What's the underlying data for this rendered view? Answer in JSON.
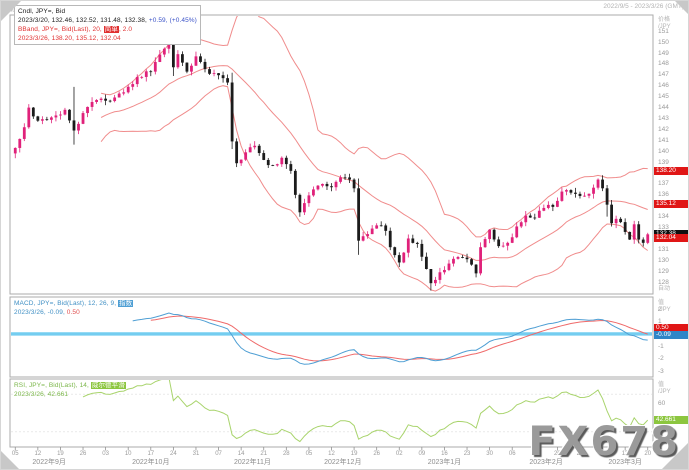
{
  "header": {
    "left": "现汇, JPY=",
    "right": "2022/9/5 - 2023/3/26 (GMT)"
  },
  "watermark": "FX678",
  "auto_label": "自动",
  "panels": {
    "price": {
      "legend": [
        [
          {
            "t": "Cndl, JPY=, Bid",
            "c": "#1a1a1a"
          }
        ],
        [
          {
            "t": "2023/3/20, 132.46, 132.52, 131.48, 132.38, ",
            "c": "#1a1a1a"
          },
          {
            "t": "+0.59, (+0.45%)",
            "c": "#3a52c8"
          }
        ],
        [
          {
            "t": "BBand, JPY=, Bid(Last), 20, ",
            "c": "#e03030"
          },
          {
            "t": "简单",
            "c": "#ffffff",
            "bg": "#e03030"
          },
          {
            "t": ", 2.0",
            "c": "#e03030"
          }
        ],
        [
          {
            "t": "2023/3/26, 138.20, 135.12, 132.04",
            "c": "#e03030"
          }
        ]
      ],
      "axis": {
        "title": "价格",
        "unit": "/JPY",
        "badges": [
          {
            "value": 138.2,
            "label": "138.20",
            "bg": "#e01616"
          },
          {
            "value": 135.12,
            "label": "135.12",
            "bg": "#e01616"
          },
          {
            "value": 132.38,
            "label": "132.38",
            "bg": "#101010"
          },
          {
            "value": 132.04,
            "label": "132.04",
            "bg": "#e01616"
          }
        ]
      }
    },
    "macd": {
      "legend": [
        [
          {
            "t": "MACD, JPY=, Bid(Last), 12, 26, 9, ",
            "c": "#3f8fc4"
          },
          {
            "t": "指数",
            "c": "#ffffff",
            "bg": "#4f9fd4"
          }
        ],
        [
          {
            "t": "2023/3/26, -0.09, ",
            "c": "#3f8fc4"
          },
          {
            "t": "0.50",
            "c": "#e05050"
          }
        ]
      ],
      "axis": {
        "title": "值",
        "unit": "/JPY",
        "badges": [
          {
            "value": 0.5,
            "label": "0.50",
            "bg": "#e01616"
          },
          {
            "value": -0.09,
            "label": "-0.09",
            "bg": "#2f86c8"
          }
        ]
      }
    },
    "rsi": {
      "legend": [
        [
          {
            "t": "RSI, JPY=, Bid(Last), 14, ",
            "c": "#7ab648"
          },
          {
            "t": "威尔德平滑",
            "c": "#ffffff",
            "bg": "#8cc63f"
          }
        ],
        [
          {
            "t": "2023/3/26, 42.661",
            "c": "#7ab648"
          }
        ]
      ],
      "axis": {
        "title": "值",
        "unit": "/JPY",
        "badges": [
          {
            "value": 42.661,
            "label": "42.661",
            "bg": "#8cc63f"
          }
        ]
      }
    }
  },
  "time_axis": {
    "months": [
      {
        "label": "2022年9月",
        "monday_start": 0,
        "days": [
          "05",
          "12",
          "19",
          "26"
        ]
      },
      {
        "label": "2022年10月",
        "monday_start": 4,
        "days": [
          "03",
          "10",
          "17",
          "24",
          "31"
        ]
      },
      {
        "label": "2022年11月",
        "monday_start": 9,
        "days": [
          "07",
          "14",
          "21",
          "28"
        ]
      },
      {
        "label": "2022年12月",
        "monday_start": 13,
        "days": [
          "05",
          "12",
          "19",
          "26"
        ]
      },
      {
        "label": "2023年1月",
        "monday_start": 17,
        "days": [
          "02",
          "09",
          "16",
          "23",
          "30"
        ]
      },
      {
        "label": "2023年2月",
        "monday_start": 22,
        "days": [
          "06",
          "13",
          "20",
          "27"
        ]
      },
      {
        "label": "2023年3月",
        "monday_start": 26,
        "days": [
          "06",
          "13",
          "20"
        ]
      }
    ]
  },
  "chart_data": {
    "type": "candlestick",
    "instrument": "JPY=",
    "interval": "daily",
    "date_range": [
      "2022/9/5",
      "2023/3/26"
    ],
    "last_candle": {
      "date": "2023/3/20",
      "open": 132.46,
      "high": 132.52,
      "low": 131.48,
      "close": 132.38,
      "change": "+0.59",
      "change_pct": "+0.45%"
    },
    "overlays": {
      "bollinger": {
        "period": 20,
        "ma_type": "简单",
        "stdev": 2.0,
        "last": {
          "upper": 138.2,
          "mid": 135.12,
          "lower": 132.04
        }
      }
    },
    "price_axis": {
      "min": 127.0,
      "max": 152.4,
      "ticks": [
        151,
        150,
        149,
        148,
        147,
        146,
        145,
        144,
        143,
        142,
        141,
        140,
        139,
        138,
        137,
        136,
        135,
        134,
        133,
        132,
        131,
        130,
        129,
        128
      ]
    },
    "indicators": [
      {
        "name": "MACD",
        "params": [
          12,
          26,
          9
        ],
        "ma_type": "指数",
        "range": [
          2.9,
          -3.4
        ],
        "ticks": [
          2,
          1,
          -1,
          -2,
          -3
        ],
        "last": {
          "macd": -0.09,
          "signal": 0.5
        }
      },
      {
        "name": "RSI",
        "params": [
          14
        ],
        "smoothing": "威尔德平滑",
        "range": [
          85,
          15
        ],
        "ticks": [
          60,
          40
        ],
        "last": 42.661
      }
    ],
    "close_anchors": [
      [
        0,
        140.3
      ],
      [
        2,
        142.2
      ],
      [
        3,
        144.0
      ],
      [
        5,
        142.8
      ],
      [
        8,
        143.1
      ],
      [
        11,
        143.8
      ],
      [
        13,
        141.9
      ],
      [
        15,
        143.5
      ],
      [
        18,
        144.7
      ],
      [
        21,
        144.6
      ],
      [
        24,
        145.4
      ],
      [
        27,
        146.8
      ],
      [
        30,
        147.3
      ],
      [
        33,
        149.4
      ],
      [
        34,
        150.1
      ],
      [
        35,
        147.7
      ],
      [
        36,
        148.9
      ],
      [
        38,
        147.3
      ],
      [
        40,
        148.7
      ],
      [
        43,
        147.1
      ],
      [
        46,
        146.7
      ],
      [
        47,
        146.3
      ],
      [
        48,
        140.9
      ],
      [
        49,
        138.9
      ],
      [
        51,
        139.9
      ],
      [
        53,
        140.5
      ],
      [
        55,
        139.2
      ],
      [
        57,
        138.7
      ],
      [
        59,
        139.4
      ],
      [
        61,
        138.2
      ],
      [
        62,
        136.0
      ],
      [
        63,
        134.4
      ],
      [
        66,
        136.5
      ],
      [
        68,
        137.0
      ],
      [
        70,
        136.7
      ],
      [
        72,
        137.6
      ],
      [
        74,
        137.4
      ],
      [
        75,
        136.6
      ],
      [
        76,
        131.8
      ],
      [
        78,
        132.4
      ],
      [
        80,
        133.2
      ],
      [
        82,
        132.7
      ],
      [
        83,
        131.2
      ],
      [
        85,
        129.8
      ],
      [
        87,
        132.0
      ],
      [
        89,
        131.5
      ],
      [
        91,
        129.2
      ],
      [
        92,
        127.9
      ],
      [
        93,
        128.2
      ],
      [
        94,
        128.9
      ],
      [
        96,
        129.7
      ],
      [
        98,
        130.3
      ],
      [
        100,
        130.1
      ],
      [
        102,
        128.8
      ],
      [
        103,
        131.2
      ],
      [
        105,
        132.8
      ],
      [
        107,
        131.3
      ],
      [
        109,
        131.6
      ],
      [
        111,
        133.1
      ],
      [
        113,
        134.1
      ],
      [
        115,
        133.9
      ],
      [
        117,
        134.8
      ],
      [
        119,
        134.9
      ],
      [
        121,
        136.3
      ],
      [
        123,
        136.2
      ],
      [
        125,
        135.9
      ],
      [
        127,
        136.1
      ],
      [
        129,
        137.4
      ],
      [
        130,
        136.6
      ],
      [
        131,
        135.1
      ],
      [
        132,
        133.4
      ],
      [
        133,
        133.8
      ],
      [
        134,
        133.5
      ],
      [
        135,
        132.6
      ],
      [
        136,
        131.9
      ],
      [
        137,
        133.3
      ],
      [
        138,
        131.9
      ],
      [
        139,
        131.6
      ],
      [
        140,
        132.38
      ]
    ],
    "wick_overrides": [
      [
        13,
        145.9,
        140.6
      ],
      [
        35,
        151.94,
        146.9
      ],
      [
        48,
        147.2,
        140.2
      ],
      [
        76,
        137.5,
        130.5
      ],
      [
        92,
        128.9,
        127.22
      ],
      [
        131,
        136.9,
        134.0
      ],
      [
        140,
        132.52,
        131.48
      ]
    ],
    "colors": {
      "up": "#e0217a",
      "down": "#1b1b1b",
      "bollinger": "#f08c8c",
      "macd": "#4f9fd4",
      "signal": "#ef6a6a",
      "zero_line": "#74cdf0",
      "rsi": "#a9d46d",
      "panel_border": "#ababab"
    }
  }
}
